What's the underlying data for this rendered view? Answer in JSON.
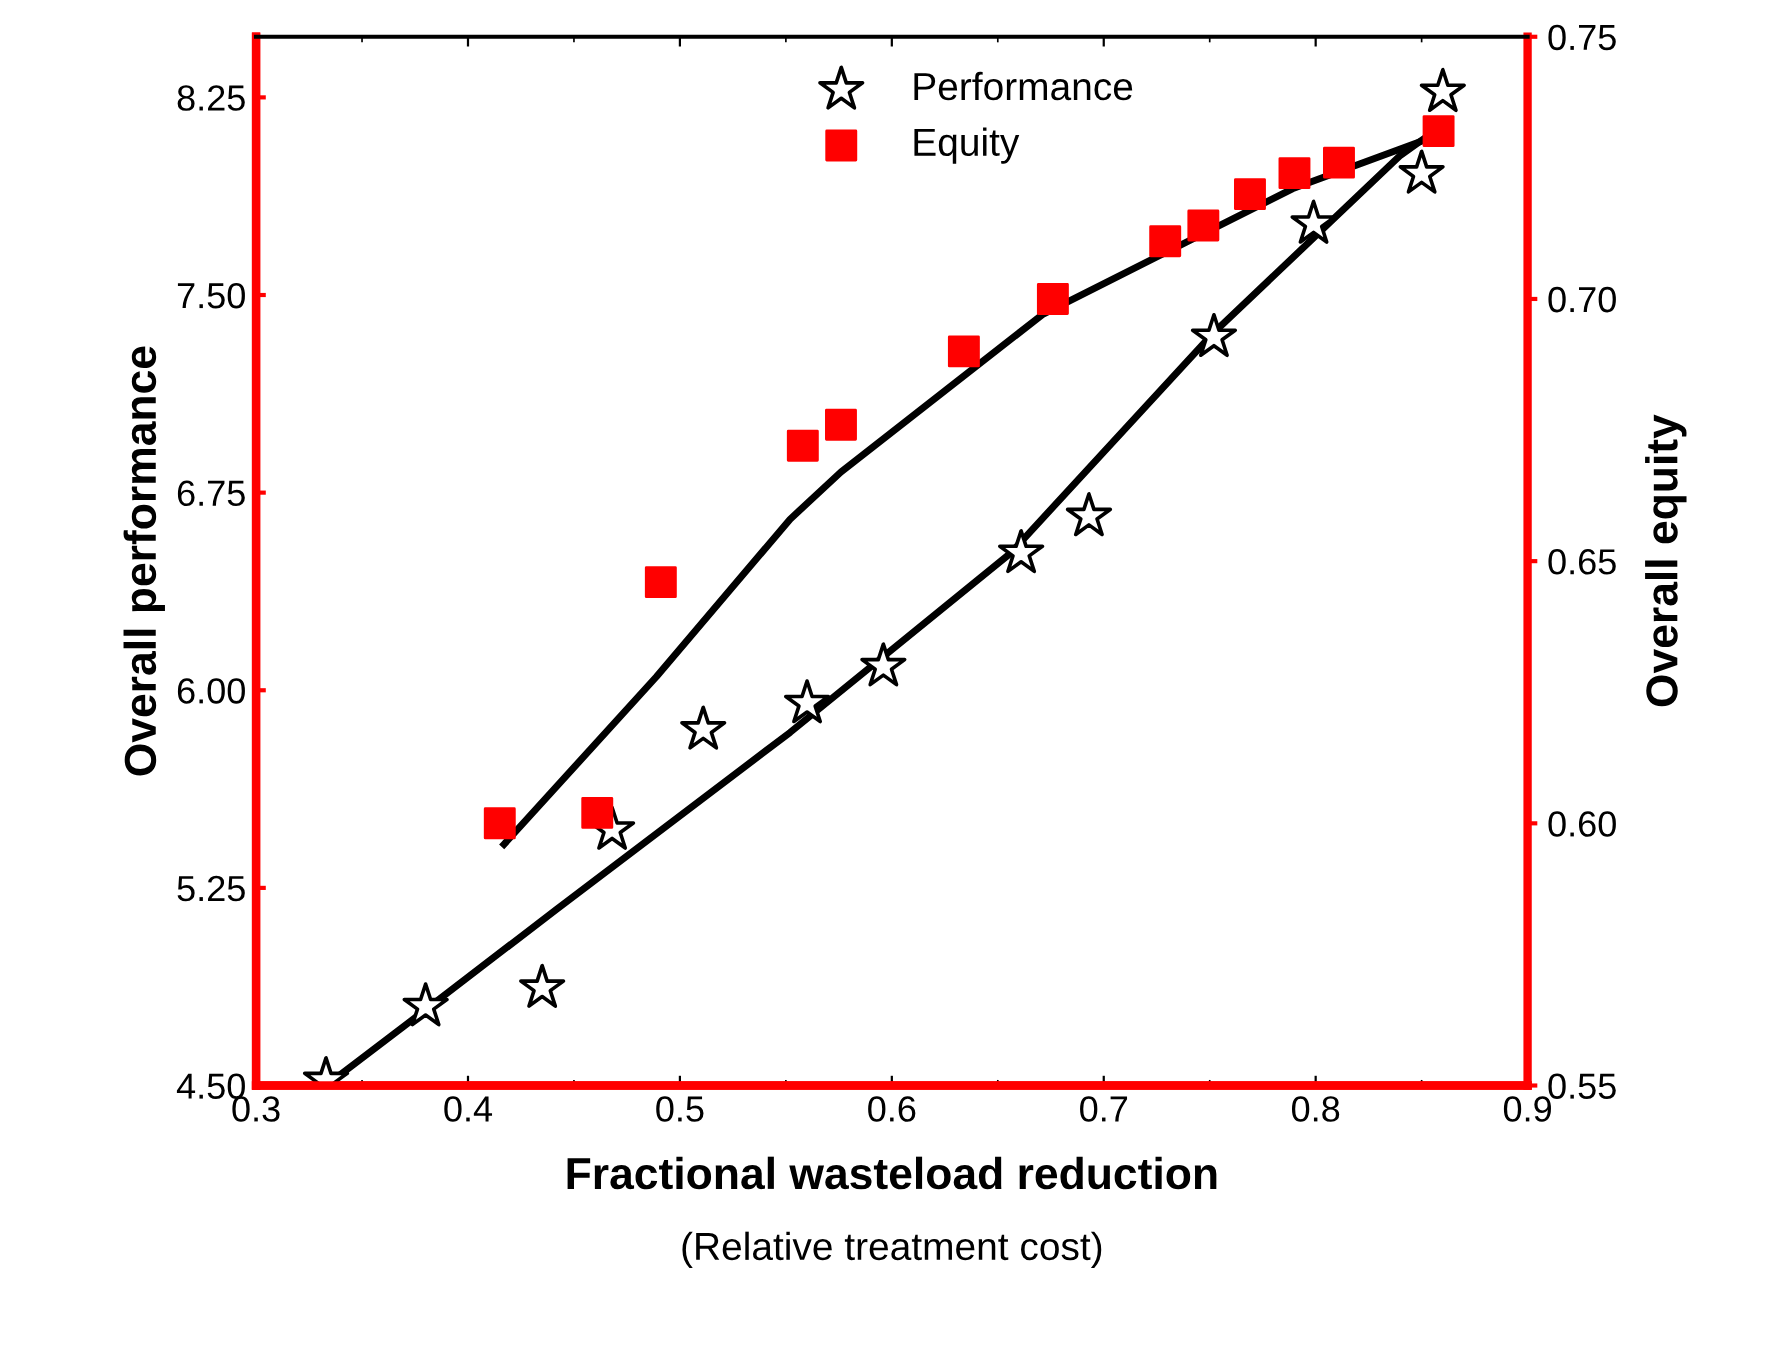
{
  "chart_data": {
    "type": "scatter",
    "xlabel": "Fractional wasteload reduction",
    "ylabel": "Overall performance",
    "y2label": "Overall equity",
    "annotations": [
      "(Relative treatment cost)"
    ],
    "xlim": [
      0.3,
      0.9
    ],
    "xticks": [
      0.3,
      0.4,
      0.5,
      0.6,
      0.7,
      0.8,
      0.9
    ],
    "ylim": [
      4.5,
      8.48
    ],
    "yticks": [
      {
        "value": 4.5,
        "label": "4.50"
      },
      5.25,
      {
        "value": 6.0,
        "label": "6.00"
      },
      6.75,
      {
        "value": 7.5,
        "label": "7.50"
      },
      8.25
    ],
    "y2lim": [
      0.55,
      0.75
    ],
    "y2ticks": [
      0.55,
      {
        "value": 0.6,
        "label": "0.60"
      },
      0.65,
      {
        "value": 0.7,
        "label": "0.70"
      },
      0.75
    ],
    "legend": "top",
    "grid": false,
    "series": [
      {
        "name": "Performance",
        "marker": "star",
        "color": "#000000",
        "x": [
          0.333,
          0.38,
          0.435,
          0.468,
          0.511,
          0.56,
          0.596,
          0.661,
          0.693,
          0.752,
          0.799,
          0.85,
          0.86
        ],
        "values": [
          4.52,
          4.8,
          4.87,
          5.47,
          5.85,
          5.95,
          6.09,
          6.52,
          6.66,
          7.34,
          7.77,
          7.96,
          8.27
        ]
      },
      {
        "name": "Equity",
        "marker": "square",
        "axis": "y2",
        "color": "#ff0000",
        "x": [
          0.415,
          0.461,
          0.491,
          0.558,
          0.576,
          0.634,
          0.676,
          0.729,
          0.747,
          0.769,
          0.79,
          0.811,
          0.858
        ],
        "values": [
          0.6,
          0.602,
          0.646,
          0.672,
          0.676,
          0.69,
          0.7,
          0.711,
          0.714,
          0.72,
          0.724,
          0.726,
          0.732
        ]
      },
      {
        "type": "line",
        "color": "#000000",
        "x": [
          0.333,
          0.369,
          0.442,
          0.552,
          0.656,
          0.751,
          0.84,
          0.854
        ],
        "values": [
          4.5,
          4.72,
          5.17,
          5.84,
          6.52,
          7.35,
          8.03,
          8.11
        ]
      },
      {
        "type": "line",
        "axis": "y2",
        "color": "#000000",
        "x": [
          0.417,
          0.489,
          0.552,
          0.576,
          0.671,
          0.725,
          0.789,
          0.856
        ],
        "values": [
          0.596,
          0.628,
          0.658,
          0.667,
          0.697,
          0.708,
          0.721,
          0.731
        ]
      }
    ]
  }
}
